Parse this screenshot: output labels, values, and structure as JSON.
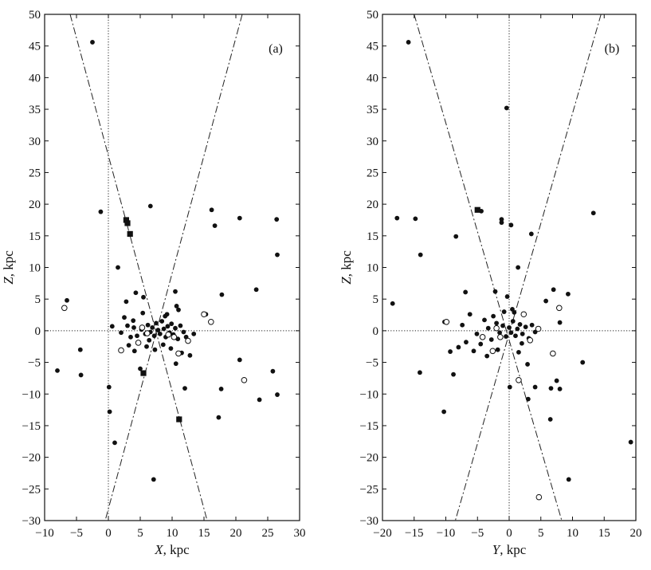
{
  "chart_data": [
    {
      "type": "scatter",
      "panel_label": "(a)",
      "xlabel_var": "X",
      "xlabel_unit": ", kpc",
      "ylabel_var": "Z",
      "ylabel_unit": ", kpc",
      "xlim": [
        -10,
        30
      ],
      "ylim": [
        -30,
        50
      ],
      "xticks": [
        -10,
        -5,
        0,
        5,
        10,
        15,
        20,
        25,
        30
      ],
      "yticks": [
        -30,
        -25,
        -20,
        -15,
        -10,
        -5,
        0,
        5,
        10,
        15,
        20,
        25,
        30,
        35,
        40,
        45,
        50
      ],
      "reference_lines": {
        "vertical_dotted_at_x": 0,
        "horizontal_dotted_at_y": 0
      },
      "cone_lines": [
        {
          "style": "dash-dot",
          "from": [
            -6,
            50
          ],
          "to": [
            15.5,
            -30
          ]
        },
        {
          "style": "dash-dot",
          "from": [
            21,
            50
          ],
          "to": [
            -0.5,
            -30
          ]
        }
      ],
      "series": [
        {
          "marker": "filled-circle",
          "points": [
            [
              -2.5,
              45.6
            ],
            [
              -1.2,
              18.8
            ],
            [
              6.6,
              19.7
            ],
            [
              16.2,
              19.1
            ],
            [
              16.7,
              16.6
            ],
            [
              20.6,
              17.8
            ],
            [
              26.4,
              17.6
            ],
            [
              26.5,
              12.0
            ],
            [
              1.5,
              10.0
            ],
            [
              10.5,
              6.2
            ],
            [
              17.8,
              5.7
            ],
            [
              23.2,
              6.5
            ],
            [
              -6.5,
              4.8
            ],
            [
              -4.4,
              -3.0
            ],
            [
              -4.3,
              -7.0
            ],
            [
              -8.0,
              -6.3
            ],
            [
              0.1,
              -8.9
            ],
            [
              0.2,
              -12.8
            ],
            [
              1.0,
              -17.7
            ],
            [
              7.1,
              -23.5
            ],
            [
              12.0,
              -9.1
            ],
            [
              17.7,
              -9.2
            ],
            [
              17.3,
              -13.7
            ],
            [
              20.6,
              -4.6
            ],
            [
              23.7,
              -10.9
            ],
            [
              25.8,
              -6.4
            ],
            [
              26.5,
              -10.1
            ],
            [
              15.3,
              2.6
            ],
            [
              13.4,
              -0.5
            ],
            [
              10.6,
              -5.2
            ],
            [
              5.0,
              -6.0
            ],
            [
              2.8,
              4.6
            ],
            [
              4.3,
              6.0
            ],
            [
              5.5,
              5.3
            ],
            [
              9.2,
              2.6
            ],
            [
              11.0,
              3.3
            ],
            [
              2.0,
              -0.3
            ],
            [
              3.0,
              0.8
            ],
            [
              3.5,
              -1.0
            ],
            [
              4.0,
              0.5
            ],
            [
              4.5,
              -0.8
            ],
            [
              5.2,
              0.2
            ],
            [
              5.8,
              -0.5
            ],
            [
              6.2,
              0.9
            ],
            [
              6.6,
              -0.2
            ],
            [
              6.9,
              0.5
            ],
            [
              7.2,
              -0.8
            ],
            [
              7.5,
              1.2
            ],
            [
              7.8,
              0.1
            ],
            [
              8.1,
              -0.5
            ],
            [
              8.4,
              1.5
            ],
            [
              8.7,
              0.3
            ],
            [
              9.0,
              -1.0
            ],
            [
              9.3,
              0.7
            ],
            [
              9.6,
              -0.3
            ],
            [
              9.9,
              1.1
            ],
            [
              10.2,
              -0.6
            ],
            [
              10.5,
              0.4
            ],
            [
              10.9,
              -1.3
            ],
            [
              11.3,
              0.8
            ],
            [
              11.8,
              -0.2
            ],
            [
              12.2,
              -1.0
            ],
            [
              3.2,
              -2.3
            ],
            [
              4.1,
              -3.2
            ],
            [
              6.0,
              -2.5
            ],
            [
              7.3,
              -3.0
            ],
            [
              8.6,
              -2.2
            ],
            [
              9.8,
              -2.8
            ],
            [
              11.5,
              -3.5
            ],
            [
              12.8,
              -3.9
            ],
            [
              2.5,
              2.1
            ],
            [
              5.4,
              2.8
            ],
            [
              8.9,
              2.3
            ],
            [
              10.7,
              3.9
            ],
            [
              3.9,
              1.6
            ],
            [
              6.4,
              -1.5
            ],
            [
              0.6,
              0.7
            ]
          ]
        },
        {
          "marker": "open-circle",
          "points": [
            [
              -6.9,
              3.6
            ],
            [
              15.0,
              2.6
            ],
            [
              16.1,
              1.4
            ],
            [
              21.3,
              -7.8
            ],
            [
              2.0,
              -3.1
            ],
            [
              4.7,
              -1.9
            ],
            [
              5.3,
              0.5
            ],
            [
              6.1,
              -0.4
            ],
            [
              10.3,
              -1.0
            ],
            [
              11.0,
              -3.6
            ],
            [
              12.5,
              -1.6
            ],
            [
              9.4,
              -0.6
            ]
          ]
        },
        {
          "marker": "filled-square",
          "points": [
            [
              2.8,
              17.5
            ],
            [
              3.0,
              17.0
            ],
            [
              3.4,
              15.3
            ],
            [
              5.5,
              -6.7
            ],
            [
              11.1,
              -14.0
            ]
          ]
        }
      ]
    },
    {
      "type": "scatter",
      "panel_label": "(b)",
      "xlabel_var": "Y",
      "xlabel_unit": ", kpc",
      "ylabel_var": "Z",
      "ylabel_unit": ", kpc",
      "xlim": [
        -20,
        20
      ],
      "ylim": [
        -30,
        50
      ],
      "xticks": [
        -20,
        -15,
        -10,
        -5,
        0,
        5,
        10,
        15,
        20
      ],
      "yticks": [
        -30,
        -25,
        -20,
        -15,
        -10,
        -5,
        0,
        5,
        10,
        15,
        20,
        25,
        30,
        35,
        40,
        45,
        50
      ],
      "reference_lines": {
        "vertical_dotted_at_x": 0,
        "horizontal_dotted_at_y": 0
      },
      "cone_lines": [
        {
          "style": "dash-dot",
          "from": [
            -15,
            50
          ],
          "to": [
            8.3,
            -30
          ]
        },
        {
          "style": "dash-dot",
          "from": [
            14.5,
            50
          ],
          "to": [
            -8.5,
            -30
          ]
        }
      ],
      "series": [
        {
          "marker": "filled-circle",
          "points": [
            [
              -15.9,
              45.6
            ],
            [
              -0.4,
              35.2
            ],
            [
              -17.7,
              17.8
            ],
            [
              -14.8,
              17.7
            ],
            [
              -14.0,
              12.0
            ],
            [
              -8.4,
              14.9
            ],
            [
              -4.4,
              18.9
            ],
            [
              -1.2,
              17.6
            ],
            [
              -1.2,
              17.1
            ],
            [
              0.3,
              16.7
            ],
            [
              3.5,
              15.3
            ],
            [
              13.3,
              18.6
            ],
            [
              1.4,
              10.0
            ],
            [
              -18.4,
              4.3
            ],
            [
              -6.9,
              6.1
            ],
            [
              -10.2,
              1.4
            ],
            [
              -14.1,
              -6.6
            ],
            [
              -10.3,
              -12.8
            ],
            [
              -8.8,
              -6.9
            ],
            [
              -9.3,
              -3.3
            ],
            [
              0.1,
              -8.9
            ],
            [
              3.0,
              -10.8
            ],
            [
              4.1,
              -8.9
            ],
            [
              6.5,
              -14.0
            ],
            [
              6.6,
              -9.1
            ],
            [
              8.0,
              -9.2
            ],
            [
              11.6,
              -5.0
            ],
            [
              9.4,
              -23.5
            ],
            [
              19.2,
              -17.6
            ],
            [
              7.5,
              -7.9
            ],
            [
              5.8,
              4.7
            ],
            [
              7.0,
              6.5
            ],
            [
              9.3,
              5.8
            ],
            [
              8.0,
              1.3
            ],
            [
              -2.0,
              1.2
            ],
            [
              -1.5,
              -0.3
            ],
            [
              -1.0,
              0.8
            ],
            [
              -0.5,
              -0.9
            ],
            [
              0.0,
              0.5
            ],
            [
              0.3,
              -0.3
            ],
            [
              0.6,
              1.5
            ],
            [
              1.0,
              -0.8
            ],
            [
              1.3,
              0.3
            ],
            [
              1.7,
              1.0
            ],
            [
              2.1,
              -0.5
            ],
            [
              2.6,
              0.6
            ],
            [
              3.1,
              -1.2
            ],
            [
              3.6,
              0.9
            ],
            [
              4.1,
              -0.2
            ],
            [
              -2.8,
              -1.4
            ],
            [
              -3.3,
              0.4
            ],
            [
              -3.9,
              1.7
            ],
            [
              -4.5,
              -2.1
            ],
            [
              -5.1,
              -0.5
            ],
            [
              -5.6,
              -3.2
            ],
            [
              -6.2,
              2.6
            ],
            [
              -6.8,
              -1.8
            ],
            [
              -7.4,
              0.9
            ],
            [
              -8.0,
              -2.6
            ],
            [
              -2.5,
              2.3
            ],
            [
              -1.8,
              -3.0
            ],
            [
              0.8,
              2.9
            ],
            [
              1.5,
              -3.4
            ],
            [
              2.9,
              -5.3
            ],
            [
              -0.3,
              5.4
            ],
            [
              -2.2,
              6.2
            ],
            [
              0.5,
              3.4
            ],
            [
              -0.8,
              3.0
            ],
            [
              2.0,
              -2.0
            ],
            [
              -3.5,
              -4.0
            ]
          ]
        },
        {
          "marker": "open-circle",
          "points": [
            [
              -9.9,
              1.4
            ],
            [
              7.9,
              3.6
            ],
            [
              4.7,
              -26.3
            ],
            [
              6.9,
              -3.6
            ],
            [
              1.5,
              -7.8
            ],
            [
              -2.6,
              -3.2
            ],
            [
              -2.0,
              0.4
            ],
            [
              -1.4,
              -1.0
            ],
            [
              3.3,
              -1.5
            ],
            [
              4.6,
              0.3
            ],
            [
              2.3,
              2.6
            ],
            [
              -4.2,
              -1.0
            ]
          ]
        },
        {
          "marker": "filled-square",
          "points": [
            [
              -5.0,
              19.1
            ]
          ]
        }
      ]
    }
  ]
}
